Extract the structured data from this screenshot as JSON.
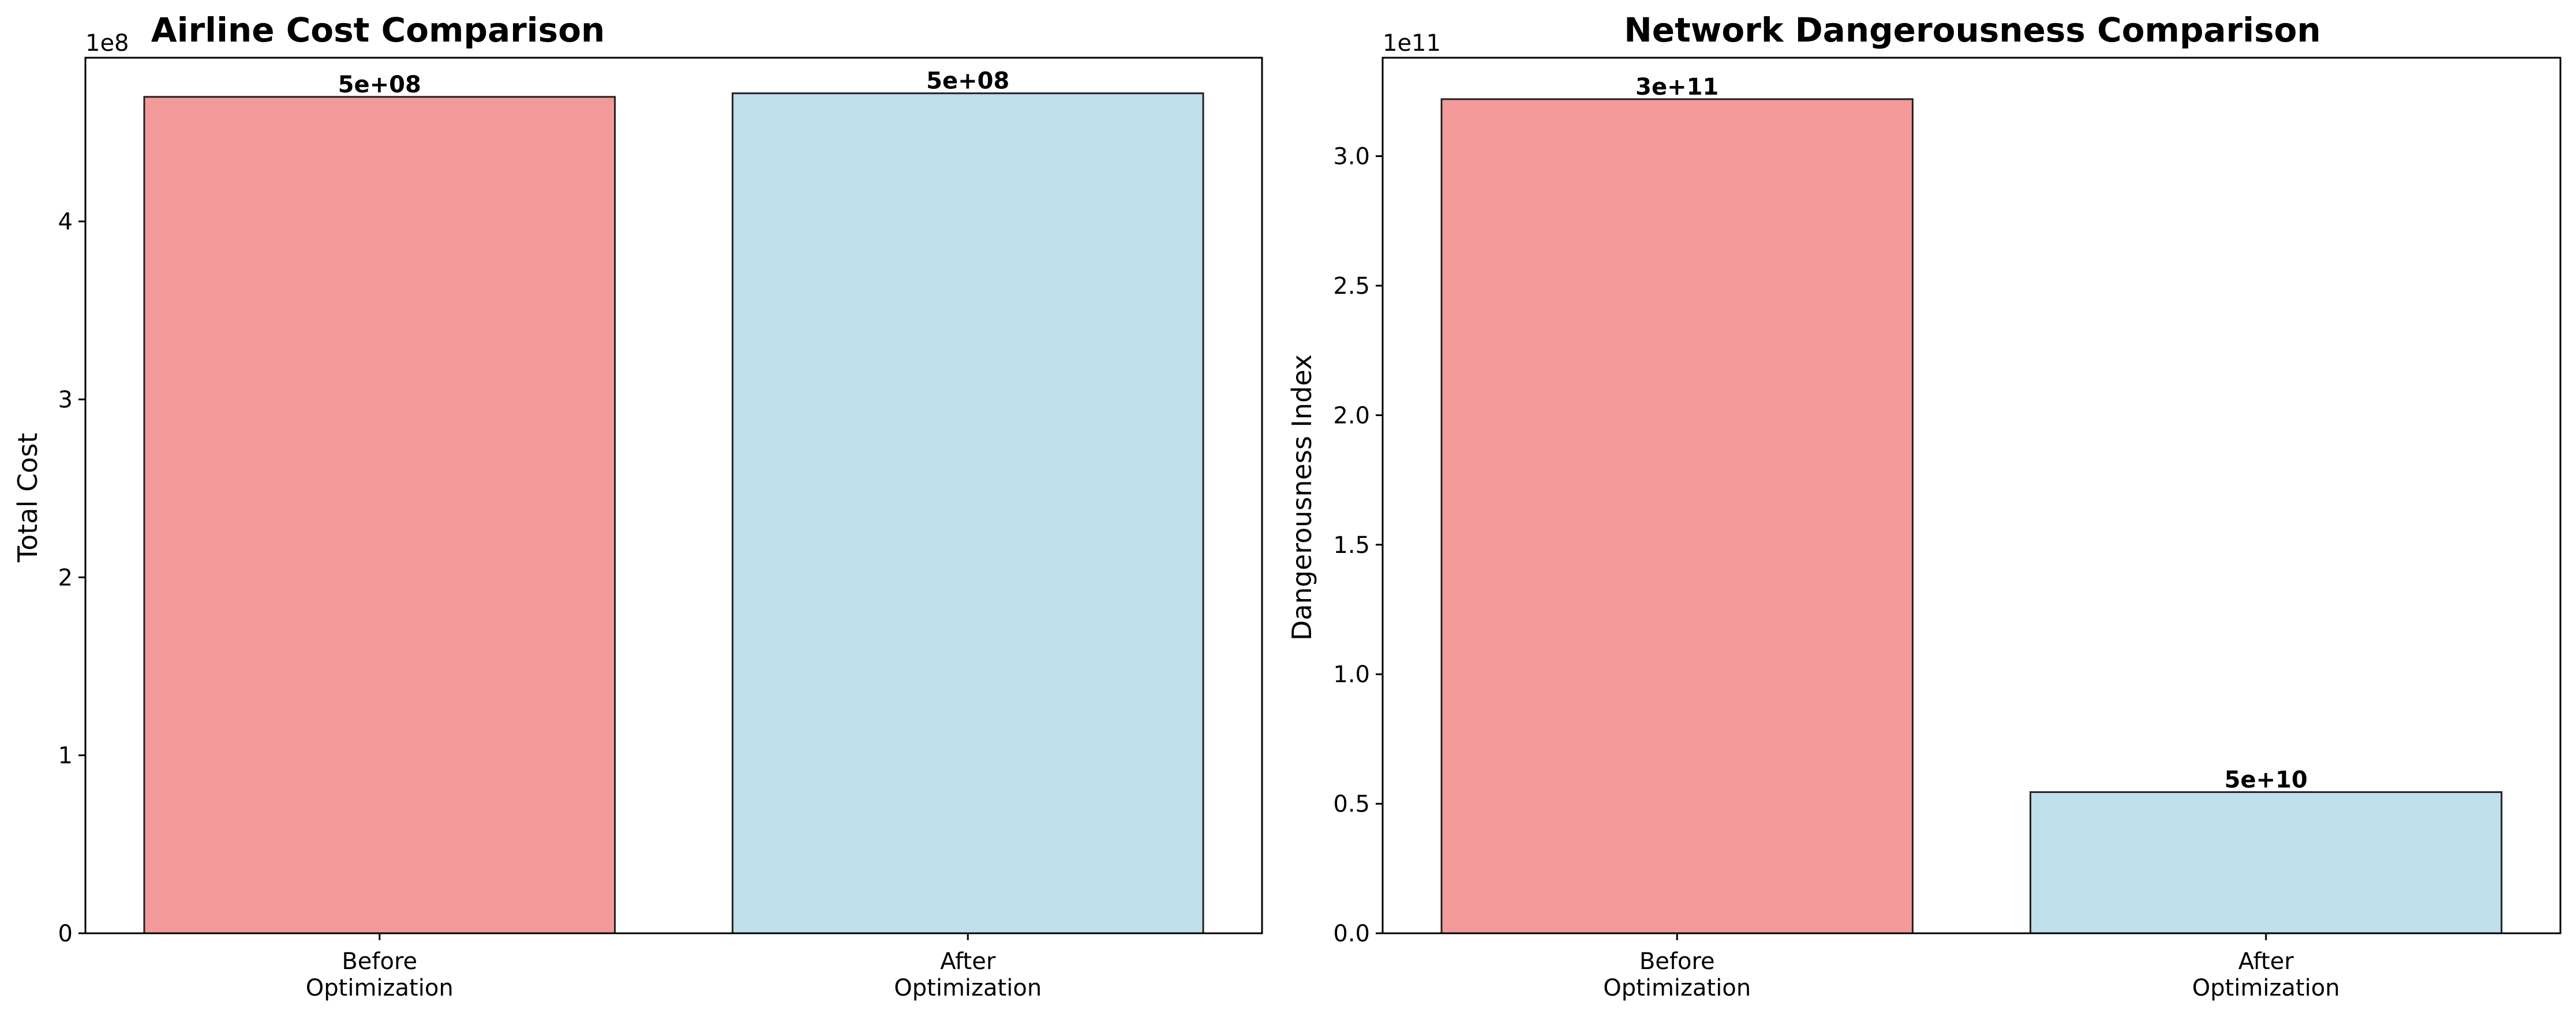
{
  "chart_data": [
    {
      "type": "bar",
      "title": "Airline Cost Comparison",
      "xlabel": "",
      "ylabel": "Total Cost",
      "axis_multiplier": "1e8",
      "categories": [
        [
          "Before",
          "Optimization"
        ],
        [
          "After",
          "Optimization"
        ]
      ],
      "values": [
        470000000,
        472000000
      ],
      "bar_labels": [
        "5e+08",
        "5e+08"
      ],
      "colors": [
        "#f4999a",
        "#bedfeb"
      ],
      "ylim": [
        0,
        492000000
      ],
      "yticks": [
        0,
        100000000,
        200000000,
        300000000,
        400000000
      ],
      "ytick_labels": [
        "0",
        "1",
        "2",
        "3",
        "4"
      ],
      "grid": false
    },
    {
      "type": "bar",
      "title": "Network Dangerousness Comparison",
      "xlabel": "",
      "ylabel": "Dangerousness Index",
      "axis_multiplier": "1e11",
      "categories": [
        [
          "Before",
          "Optimization"
        ],
        [
          "After",
          "Optimization"
        ]
      ],
      "values": [
        322000000000,
        54500000000
      ],
      "bar_labels": [
        "3e+11",
        "5e+10"
      ],
      "colors": [
        "#f4999a",
        "#bedfeb"
      ],
      "ylim": [
        0,
        338000000000
      ],
      "yticks": [
        0,
        50000000000,
        100000000000,
        150000000000,
        200000000000,
        250000000000,
        300000000000
      ],
      "ytick_labels": [
        "0.0",
        "0.5",
        "1.0",
        "1.5",
        "2.0",
        "2.5",
        "3.0"
      ],
      "grid": false
    }
  ]
}
